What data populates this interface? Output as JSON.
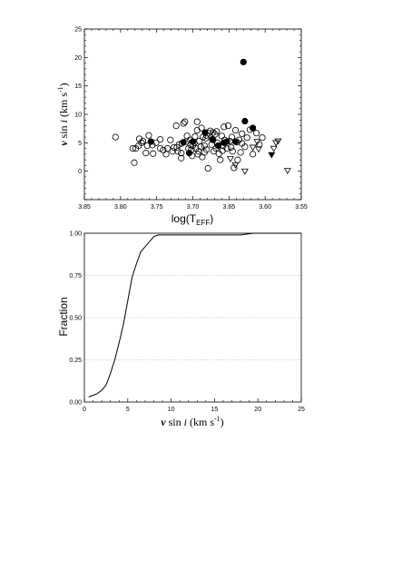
{
  "chart_data": [
    {
      "type": "scatter",
      "title": "",
      "xlabel": "log(T",
      "xlabel_sub": "EFF",
      "xlabel_close": ")",
      "ylabel": {
        "v": "v",
        "rest": " sin ",
        "i": "i",
        "unit": " (km s",
        "exp": "-1",
        "close": ")"
      },
      "xlim": [
        3.85,
        3.55
      ],
      "ylim": [
        -5,
        25
      ],
      "x_reversed": true,
      "xticks": [
        "3.85",
        "3.80",
        "3.75",
        "3.70",
        "3.65",
        "3.60",
        "3.55"
      ],
      "xtick_values": [
        3.85,
        3.8,
        3.75,
        3.7,
        3.65,
        3.6,
        3.55
      ],
      "yticks": [
        "0",
        "5",
        "10",
        "15",
        "20",
        "25"
      ],
      "ytick_values": [
        0,
        5,
        10,
        15,
        20,
        25
      ],
      "grid": false,
      "series": [
        {
          "marker": "open-circle",
          "points": [
            [
              3.807,
              6.0
            ],
            [
              3.783,
              4.0
            ],
            [
              3.781,
              1.5
            ],
            [
              3.779,
              4.0
            ],
            [
              3.775,
              4.5
            ],
            [
              3.771,
              5.0
            ],
            [
              3.769,
              5.3
            ],
            [
              3.765,
              3.2
            ],
            [
              3.763,
              4.5
            ],
            [
              3.761,
              6.3
            ],
            [
              3.756,
              4.6
            ],
            [
              3.751,
              5.0
            ],
            [
              3.745,
              4.0
            ],
            [
              3.741,
              3.7
            ],
            [
              3.737,
              3.0
            ],
            [
              3.735,
              4.0
            ],
            [
              3.731,
              5.5
            ],
            [
              3.728,
              3.5
            ],
            [
              3.726,
              4.2
            ],
            [
              3.723,
              8.0
            ],
            [
              3.721,
              3.5
            ],
            [
              3.719,
              4.7
            ],
            [
              3.716,
              3.2
            ],
            [
              3.713,
              8.4
            ],
            [
              3.711,
              8.7
            ],
            [
              3.709,
              5.2
            ],
            [
              3.708,
              6.2
            ],
            [
              3.706,
              4.0
            ],
            [
              3.704,
              5.5
            ],
            [
              3.702,
              3.8
            ],
            [
              3.701,
              2.7
            ],
            [
              3.7,
              4.5
            ],
            [
              3.698,
              5.0
            ],
            [
              3.696,
              4.0
            ],
            [
              3.694,
              8.7
            ],
            [
              3.692,
              3.5
            ],
            [
              3.691,
              5.3
            ],
            [
              3.689,
              4.3
            ],
            [
              3.687,
              2.5
            ],
            [
              3.686,
              6.0
            ],
            [
              3.684,
              4.5
            ],
            [
              3.682,
              5.8
            ],
            [
              3.681,
              3.8
            ],
            [
              3.679,
              0.5
            ],
            [
              3.678,
              6.7
            ],
            [
              3.676,
              7.1
            ],
            [
              3.674,
              4.7
            ],
            [
              3.672,
              5.5
            ],
            [
              3.671,
              3.5
            ],
            [
              3.669,
              6.5
            ],
            [
              3.668,
              4.0
            ],
            [
              3.666,
              5.0
            ],
            [
              3.664,
              3.1
            ],
            [
              3.662,
              2.0
            ],
            [
              3.66,
              6.2
            ],
            [
              3.658,
              4.5
            ],
            [
              3.656,
              5.5
            ],
            [
              3.653,
              4.0
            ],
            [
              3.651,
              8.0
            ],
            [
              3.649,
              5.3
            ],
            [
              3.647,
              4.2
            ],
            [
              3.645,
              3.5
            ],
            [
              3.643,
              0.6
            ],
            [
              3.641,
              7.2
            ],
            [
              3.638,
              2.0
            ],
            [
              3.636,
              5.5
            ],
            [
              3.634,
              3.3
            ],
            [
              3.632,
              6.6
            ],
            [
              3.628,
              4.3
            ],
            [
              3.625,
              5.9
            ],
            [
              3.621,
              7.3
            ],
            [
              3.617,
              3.0
            ],
            [
              3.612,
              6.7
            ],
            [
              3.608,
              4.7
            ],
            [
              3.604,
              5.9
            ],
            [
              3.722,
              4.2
            ],
            [
              3.697,
              6.1
            ],
            [
              3.688,
              7.6
            ],
            [
              3.667,
              7.0
            ],
            [
              3.657,
              7.8
            ],
            [
              3.745,
              5.6
            ],
            [
              3.703,
              4.6
            ],
            [
              3.684,
              3.3
            ],
            [
              3.672,
              6.8
            ],
            [
              3.659,
              3.6
            ],
            [
              3.632,
              4.9
            ],
            [
              3.716,
              2.3
            ],
            [
              3.694,
              7.2
            ],
            [
              3.755,
              3.1
            ],
            [
              3.774,
              5.7
            ],
            [
              3.693,
              3.0
            ],
            [
              3.715,
              4.9
            ],
            [
              3.639,
              5.1
            ],
            [
              3.681,
              6.3
            ],
            [
              3.646,
              6.0
            ]
          ]
        },
        {
          "marker": "filled-circle",
          "points": [
            [
              3.758,
              5.2
            ],
            [
              3.713,
              5.1
            ],
            [
              3.705,
              3.2
            ],
            [
              3.7,
              5.2
            ],
            [
              3.683,
              6.8
            ],
            [
              3.673,
              5.6
            ],
            [
              3.665,
              4.5
            ],
            [
              3.657,
              5.0
            ],
            [
              3.653,
              5.2
            ],
            [
              3.641,
              5.2
            ],
            [
              3.63,
              19.2
            ],
            [
              3.628,
              8.8
            ],
            [
              3.617,
              7.6
            ]
          ]
        },
        {
          "marker": "open-triangle-down",
          "points": [
            [
              3.648,
              2.2
            ],
            [
              3.641,
              1.1
            ],
            [
              3.628,
              0.0
            ],
            [
              3.617,
              4.2
            ],
            [
              3.611,
              5.2
            ],
            [
              3.609,
              3.9
            ],
            [
              3.588,
              4.0
            ],
            [
              3.585,
              5.0
            ],
            [
              3.582,
              5.3
            ],
            [
              3.569,
              0.1
            ]
          ]
        },
        {
          "marker": "filled-triangle-down",
          "points": [
            [
              3.591,
              2.9
            ]
          ]
        }
      ]
    },
    {
      "type": "line",
      "title": "",
      "xlabel": {
        "v": "v",
        "rest": " sin ",
        "i": "i",
        "unit": " (km s",
        "exp": "-1",
        "close": ")"
      },
      "ylabel": "Fraction",
      "xlim": [
        0,
        25
      ],
      "ylim": [
        0,
        1.0
      ],
      "xticks": [
        "0",
        "5",
        "10",
        "15",
        "20",
        "25"
      ],
      "xtick_values": [
        0,
        5,
        10,
        15,
        20,
        25
      ],
      "yticks": [
        "0.00",
        "0.25",
        "0.50",
        "0.75",
        "1.00"
      ],
      "ytick_values": [
        0,
        0.25,
        0.5,
        0.75,
        1.0
      ],
      "grid": "horizontal dotted",
      "series": [
        {
          "x": [
            0.5,
            1.0,
            1.5,
            2.0,
            2.5,
            3.0,
            3.5,
            4.0,
            4.5,
            5.0,
            5.5,
            6.0,
            6.5,
            7.0,
            7.5,
            8.0,
            8.5,
            9.0,
            12.0,
            15.0,
            18.0,
            19.5,
            25.0
          ],
          "y": [
            0.03,
            0.04,
            0.05,
            0.07,
            0.1,
            0.17,
            0.25,
            0.35,
            0.46,
            0.6,
            0.74,
            0.82,
            0.89,
            0.92,
            0.95,
            0.98,
            0.99,
            0.99,
            0.99,
            0.99,
            0.99,
            1.0,
            1.0
          ]
        }
      ]
    }
  ]
}
